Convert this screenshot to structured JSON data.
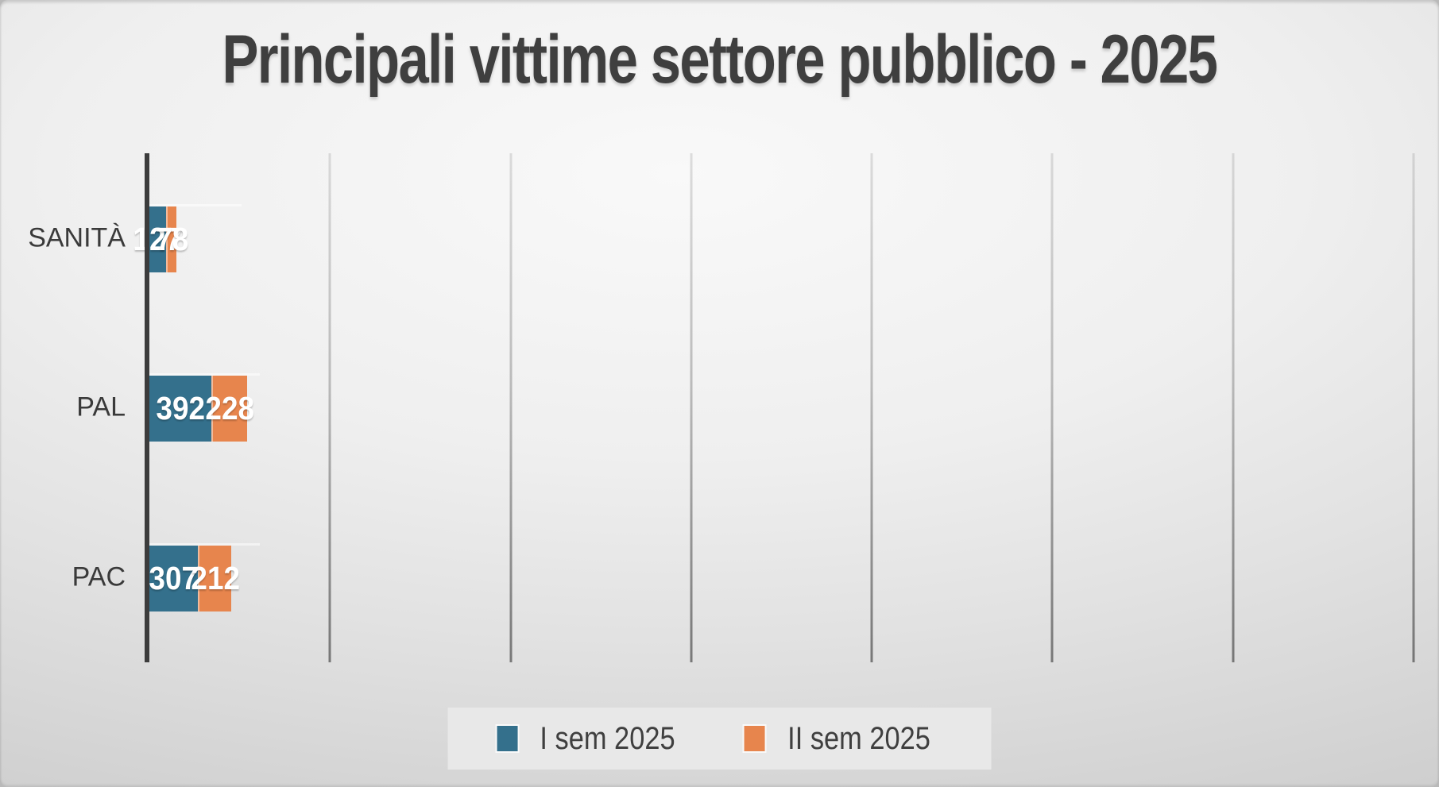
{
  "chart_data": {
    "type": "bar",
    "orientation": "horizontal",
    "stacked": true,
    "title": "Principali vittime settore pubblico - 2025",
    "categories": [
      "SANITÀ",
      "PAL",
      "PAC"
    ],
    "series": [
      {
        "name": "I sem 2025",
        "color": "#34708C",
        "values": [
          127,
          392,
          307
        ]
      },
      {
        "name": "II sem 2025",
        "color": "#E7854D",
        "values": [
          78,
          228,
          212
        ]
      }
    ],
    "xlabel": "",
    "ylabel": "",
    "xlim": [
      0,
      700
    ],
    "gridline_interval": 100,
    "grid": true,
    "legend_position": "bottom",
    "data_labels": "inside-center"
  },
  "colors": {
    "series_1": "#34708C",
    "series_2": "#E7854D",
    "title_text": "#3F3F3F",
    "category_text": "#3A3A3A",
    "value_text": "#FFFFFF",
    "axis_line": "#3C3C3C",
    "gridline": "#9B9B9B",
    "legend_bg": "#E8E8E8",
    "background_edge": "#CBCBCB",
    "background_center": "#F9F9F9"
  }
}
